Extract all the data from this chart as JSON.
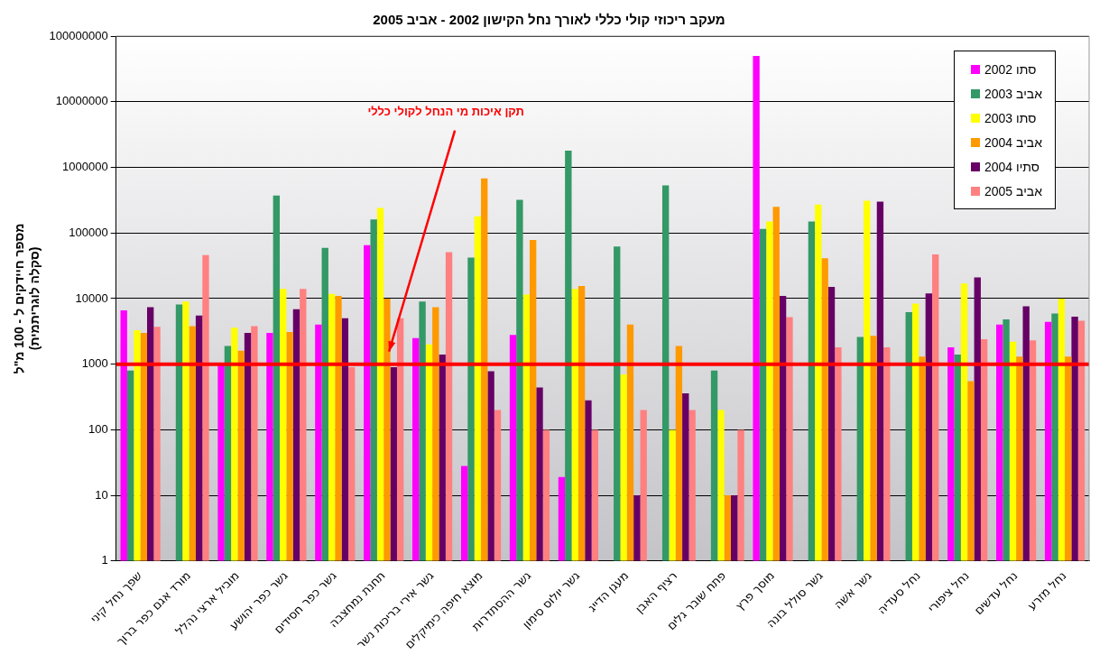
{
  "chart_data": {
    "type": "bar",
    "title": "מעקב ריכוזי קולי כללי לאורך נחל הקישון 2002 - אביב 2005",
    "ylabel": "מספר חיידקים ל - 100 מ\"ל\n(סקלה לוגריתמית)",
    "categories": [
      "שפך נחל קיני",
      "מורד אגם כפר ברוך",
      "מוביל ארצי נהלל",
      "גשר כפר יהושע",
      "גשר כפר חסידים",
      "תחנת נמחצבה",
      "גשר אירי בריכות נשר",
      "מוצא חיפה כימיקלים",
      "גשר ההסתדרות",
      "גשר יולוס סימון",
      "מעגן הדייג",
      "רציף האבן",
      "פתח שובר גלים",
      "מוסך פרץ",
      "גשר סולל בונה",
      "גשר אשה",
      "נחל סעדיה",
      "נחל ציפורי",
      "נחל עדשים",
      "נחל מזרע"
    ],
    "series": [
      {
        "name": "סתו 2002",
        "color": "#ff00ff",
        "values": [
          6600,
          null,
          1000,
          3000,
          4000,
          65000,
          2500,
          28,
          2800,
          19,
          null,
          null,
          null,
          50000000,
          null,
          null,
          null,
          1800,
          4000,
          4400
        ]
      },
      {
        "name": "אביב 2003",
        "color": "#339966",
        "values": [
          800,
          8100,
          1900,
          370000,
          59000,
          160000,
          9000,
          42000,
          320000,
          1800000,
          62000,
          530000,
          800,
          115000,
          150000,
          2600,
          6200,
          1400,
          4800,
          5900
        ]
      },
      {
        "name": "סתו 2003",
        "color": "#ffff00",
        "values": [
          3300,
          9000,
          3600,
          14000,
          11800,
          240000,
          2000,
          180000,
          11500,
          14000,
          700,
          100,
          200,
          150000,
          270000,
          310000,
          8400,
          17000,
          2200,
          10000
        ]
      },
      {
        "name": "אביב 2004",
        "color": "#ff9900",
        "values": [
          3000,
          3800,
          1600,
          3100,
          11000,
          10000,
          7400,
          680000,
          78000,
          15500,
          4000,
          1900,
          10,
          250000,
          41000,
          2700,
          1300,
          550,
          1300,
          1300
        ]
      },
      {
        "name": "סתיו 2004",
        "color": "#660066",
        "values": [
          7400,
          5500,
          3000,
          6900,
          5000,
          900,
          1400,
          780,
          440,
          280,
          10,
          360,
          10,
          11000,
          15000,
          300000,
          12000,
          21000,
          7600,
          5300
        ]
      },
      {
        "name": "אביב 2005",
        "color": "#ff8080",
        "values": [
          3700,
          46000,
          3800,
          14000,
          900,
          5000,
          51000,
          200,
          100,
          100,
          200,
          200,
          100,
          5200,
          1800,
          1800,
          47000,
          2400,
          2300,
          4600
        ]
      }
    ],
    "log": "y",
    "ylim": [
      1,
      100000000
    ],
    "yticks": [
      1,
      10,
      100,
      1000,
      10000,
      100000,
      1000000,
      10000000,
      100000000
    ],
    "grid": "y",
    "legend": "top right",
    "ref_lines": [
      {
        "axis": "y",
        "value": 1000,
        "label": "תקן איכות מי הנחל לקולי כללי",
        "color": "#ff0000"
      }
    ]
  }
}
